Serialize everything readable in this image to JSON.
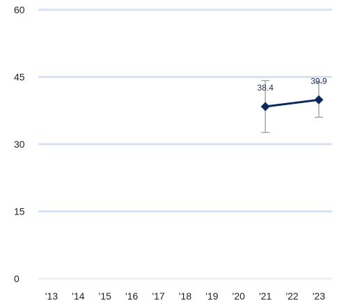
{
  "chart_data": {
    "type": "line",
    "title": "",
    "xlabel": "",
    "ylabel": "",
    "categories": [
      "'13",
      "'14",
      "'15",
      "'16",
      "'17",
      "'18",
      "'19",
      "'20",
      "'21",
      "'22",
      "'23"
    ],
    "ylim": [
      0,
      60
    ],
    "yticks": [
      0,
      15,
      30,
      45,
      60
    ],
    "ytick_labels": [
      "0",
      "15",
      "30",
      "45",
      "60"
    ],
    "grid": true,
    "legend": "none",
    "series": [
      {
        "values": [
          null,
          null,
          null,
          null,
          null,
          null,
          null,
          null,
          38.4,
          null,
          39.9
        ],
        "labels": [
          null,
          null,
          null,
          null,
          null,
          null,
          null,
          null,
          "38.4",
          null,
          "39.9"
        ],
        "error_low": [
          null,
          null,
          null,
          null,
          null,
          null,
          null,
          null,
          32.6,
          null,
          36.0
        ],
        "error_high": [
          null,
          null,
          null,
          null,
          null,
          null,
          null,
          null,
          44.2,
          null,
          43.8
        ]
      }
    ],
    "colors": {
      "series": "#0a2a5c",
      "error_bar": "#a6a6a6",
      "grid": "#d9e2f1",
      "axis": "#d9d9d9",
      "text": "#1f1f1f"
    }
  }
}
